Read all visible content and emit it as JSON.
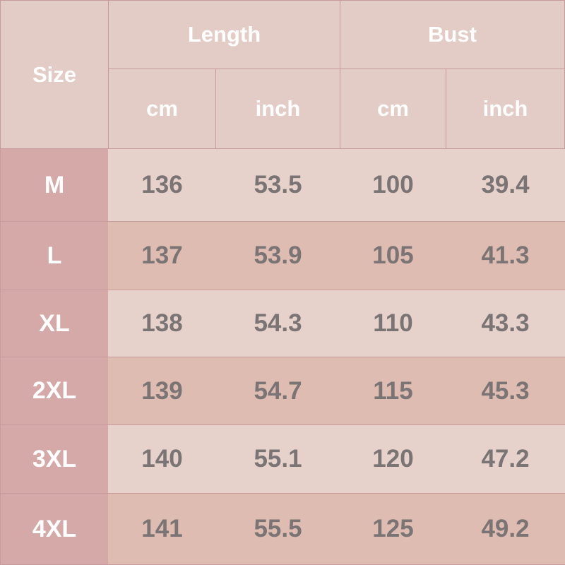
{
  "table": {
    "header": {
      "size": "Size",
      "groups": [
        "Length",
        "Bust"
      ],
      "units": [
        "cm",
        "inch",
        "cm",
        "inch"
      ]
    },
    "rows": [
      [
        "M",
        "136",
        "53.5",
        "100",
        "39.4"
      ],
      [
        "L",
        "137",
        "53.9",
        "105",
        "41.3"
      ],
      [
        "XL",
        "138",
        "54.3",
        "110",
        "43.3"
      ],
      [
        "2XL",
        "139",
        "54.7",
        "115",
        "45.3"
      ],
      [
        "3XL",
        "140",
        "55.1",
        "120",
        "47.2"
      ],
      [
        "4XL",
        "141",
        "55.5",
        "125",
        "49.2"
      ]
    ]
  }
}
